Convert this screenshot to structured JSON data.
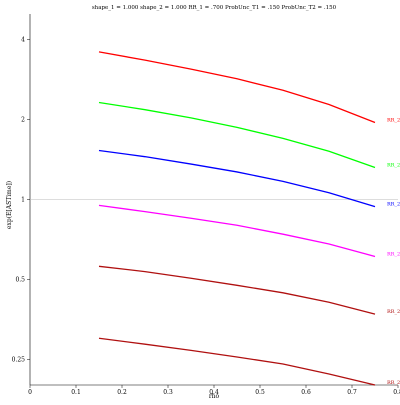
{
  "chart_data": {
    "type": "line",
    "title": "shape_1 = 1.000  shape_2 = 1.000  RR_1 = .700  ProbUnc_T1 = .150  ProbUnc_T2 = .150",
    "xlabel": "rho",
    "ylabel": "exp(E[ASTime])",
    "y_scale": "log",
    "xlim": [
      0,
      0.8
    ],
    "ylim": [
      0.2,
      5.0
    ],
    "x_ticks": [
      "0",
      "0.1",
      "0.2",
      "0.3",
      "0.4",
      "0.5",
      "0.6",
      "0.7",
      "0.8"
    ],
    "y_ticks": [
      "0.25",
      "0.5",
      "1",
      "2",
      "4"
    ],
    "reference_line_y": 1,
    "grid": false,
    "legend": "inline labels at right end of each line",
    "x": [
      0.15,
      0.25,
      0.35,
      0.45,
      0.55,
      0.65,
      0.75
    ],
    "series": [
      {
        "name": "RR_2 = .500",
        "color": "#ff0000",
        "values": [
          3.6,
          3.35,
          3.1,
          2.85,
          2.58,
          2.28,
          1.95
        ]
      },
      {
        "name": "RR_2 = .600",
        "color": "#00ff00",
        "values": [
          2.32,
          2.18,
          2.03,
          1.87,
          1.7,
          1.52,
          1.32
        ]
      },
      {
        "name": "RR_2 = .700",
        "color": "#0000ff",
        "values": [
          1.53,
          1.45,
          1.36,
          1.27,
          1.17,
          1.06,
          0.94
        ]
      },
      {
        "name": "RR_2 = .800",
        "color": "#ff00ff",
        "values": [
          0.95,
          0.9,
          0.85,
          0.8,
          0.74,
          0.68,
          0.61
        ]
      },
      {
        "name": "RR_2 = .900",
        "color": "#b01010",
        "values": [
          0.56,
          0.535,
          0.505,
          0.475,
          0.445,
          0.41,
          0.37
        ]
      },
      {
        "name": "RR_2 = 1.000",
        "color": "#b01010",
        "values": [
          0.3,
          0.285,
          0.27,
          0.255,
          0.24,
          0.22,
          0.2
        ]
      }
    ]
  }
}
